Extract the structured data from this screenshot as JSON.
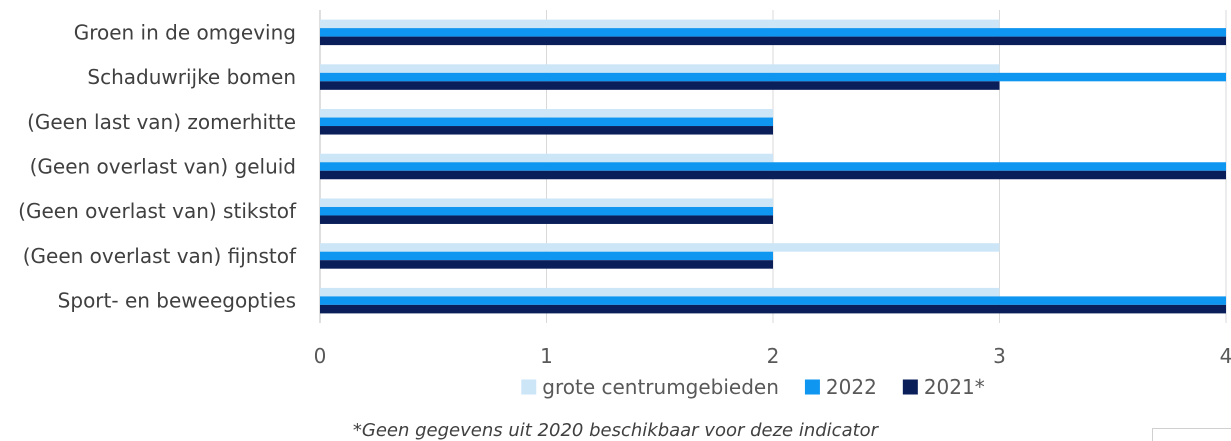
{
  "chart_data": {
    "type": "bar",
    "orientation": "horizontal",
    "categories": [
      "Groen in de omgeving",
      "Schaduwrijke bomen",
      "(Geen last van) zomerhitte",
      "(Geen overlast van) geluid",
      "(Geen overlast van) stikstof",
      "(Geen overlast van) fijnstof",
      "Sport- en beweegopties"
    ],
    "series": [
      {
        "name": "grote centrumgebieden",
        "color": "#cde6f7",
        "values": [
          3,
          3,
          2,
          2,
          2,
          3,
          3
        ]
      },
      {
        "name": "2022",
        "color": "#0f96f0",
        "values": [
          4,
          4,
          2,
          4,
          2,
          2,
          4
        ]
      },
      {
        "name": "2021*",
        "color": "#0a1e5a",
        "values": [
          4,
          3,
          2,
          4,
          2,
          2,
          4
        ]
      }
    ],
    "xlim": [
      0,
      4
    ],
    "xticks": [
      "0",
      "1",
      "2",
      "3",
      "4"
    ],
    "grid": true,
    "legend_position": "bottom",
    "footnote": "*Geen gegevens uit 2020 beschikbaar voor deze indicator"
  }
}
